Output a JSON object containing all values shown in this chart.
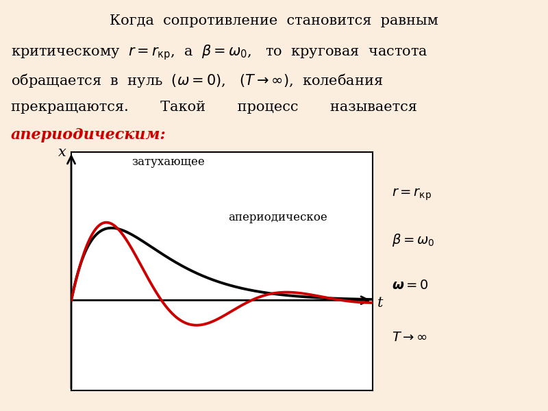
{
  "background_color": "#fbeede",
  "text_color": "#000000",
  "red_color": "#cc0000",
  "bold_red_line": "апериодическим:",
  "label_zatuhayushchee": "затухающее",
  "label_aperiodicheskoe": "апериодическое",
  "xlabel": "t",
  "ylabel": "x",
  "eq1": "$r = r_{\\mathrm{кр}}$",
  "eq2": "$\\beta = \\omega_0$",
  "eq3": "$\\boldsymbol{\\omega} = 0$",
  "eq4": "$T \\rightarrow \\infty$",
  "title_fontsize": 15,
  "eq_fontsize": 14
}
